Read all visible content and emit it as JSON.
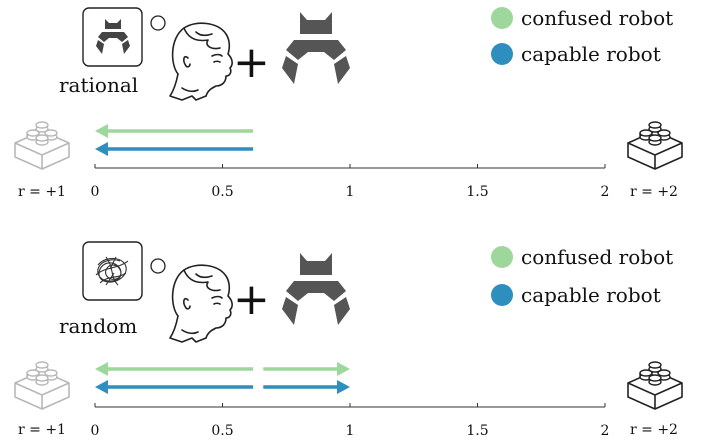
{
  "colors": {
    "confused": "#9ed79c",
    "capable": "#2e8fbf",
    "ink": "#111111",
    "brick_light": "#bbbbbb",
    "brick_dark": "#222222",
    "gripper": "#555555"
  },
  "icons": {
    "plus": "+",
    "brick": "lego-brick-icon",
    "human": "human-head-icon",
    "gripper": "robot-gripper-icon",
    "scribble": "scribble-icon"
  },
  "axis": {
    "ticks": [
      "0",
      "0.5",
      "1",
      "1.5",
      "2"
    ],
    "tick_values": [
      0,
      0.5,
      1,
      1.5,
      2
    ],
    "left_reward": "r = +1",
    "right_reward": "r = +2"
  },
  "panels": [
    {
      "human_label": "rational",
      "thought": "gripper",
      "legend": [
        {
          "name": "confused robot",
          "color": "#9ed79c"
        },
        {
          "name": "capable robot",
          "color": "#2e8fbf"
        }
      ],
      "arrows": [
        {
          "series": "confused",
          "from": 0.62,
          "to": 0,
          "direction": "left"
        },
        {
          "series": "capable",
          "from": 0.62,
          "to": 0,
          "direction": "left"
        }
      ]
    },
    {
      "human_label": "random",
      "thought": "scribble",
      "legend": [
        {
          "name": "confused robot",
          "color": "#9ed79c"
        },
        {
          "name": "capable robot",
          "color": "#2e8fbf"
        }
      ],
      "arrows": [
        {
          "series": "confused",
          "from": 0.62,
          "to": 0,
          "direction": "left"
        },
        {
          "series": "confused",
          "from": 0.66,
          "to": 1,
          "direction": "right"
        },
        {
          "series": "capable",
          "from": 0.62,
          "to": 0,
          "direction": "left"
        },
        {
          "series": "capable",
          "from": 0.66,
          "to": 1,
          "direction": "right"
        }
      ]
    }
  ]
}
